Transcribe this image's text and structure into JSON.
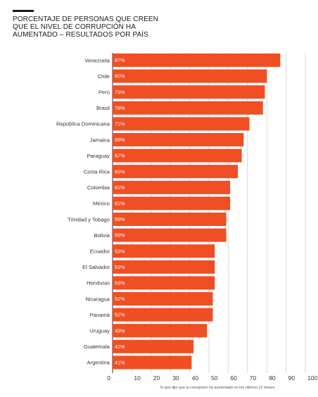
{
  "title_lines": [
    "PORCENTAJE DE PERSONAS QUE CREEN",
    "QUE EL NIVEL DE CORRUPCIÓN HA",
    "AUMENTADO – RESULTADOS POR PAÍS"
  ],
  "colors": {
    "bar": "#f04e23",
    "grid": "#d7d7d7",
    "axis": "#333333"
  },
  "chart_data": {
    "type": "bar",
    "orientation": "horizontal",
    "title": "PORCENTAJE DE PERSONAS QUE CREEN QUE EL NIVEL DE CORRUPCIÓN HA AUMENTADO – RESULTADOS POR PAÍS",
    "xlabel": "% que dijo que la corrupción ha aumentado en los últimos 12 meses",
    "ylabel": "",
    "xlim": [
      0,
      100
    ],
    "xticks": [
      0,
      10,
      20,
      30,
      40,
      50,
      60,
      70,
      80,
      90,
      100
    ],
    "grid": true,
    "categories": [
      "Venezuela",
      "Chile",
      "Perú",
      "Brasil",
      "República Dominicana",
      "Jamaica",
      "Paraguay",
      "Costa Rica",
      "Colombia",
      "México",
      "Trinidad y Tobago",
      "Bolivia",
      "Ecuador",
      "El Salvador",
      "Honduras",
      "Nicaragua",
      "Panamá",
      "Uruguay",
      "Guatemala",
      "Argentina"
    ],
    "values": [
      87,
      80,
      79,
      78,
      71,
      68,
      67,
      65,
      61,
      61,
      59,
      59,
      53,
      53,
      53,
      52,
      52,
      49,
      42,
      41
    ],
    "value_labels": [
      "87%",
      "80%",
      "79%",
      "78%",
      "71%",
      "68%",
      "67%",
      "65%",
      "61%",
      "61%",
      "59%",
      "59%",
      "53%",
      "53%",
      "53%",
      "52%",
      "52%",
      "49%",
      "42%",
      "41%"
    ]
  }
}
